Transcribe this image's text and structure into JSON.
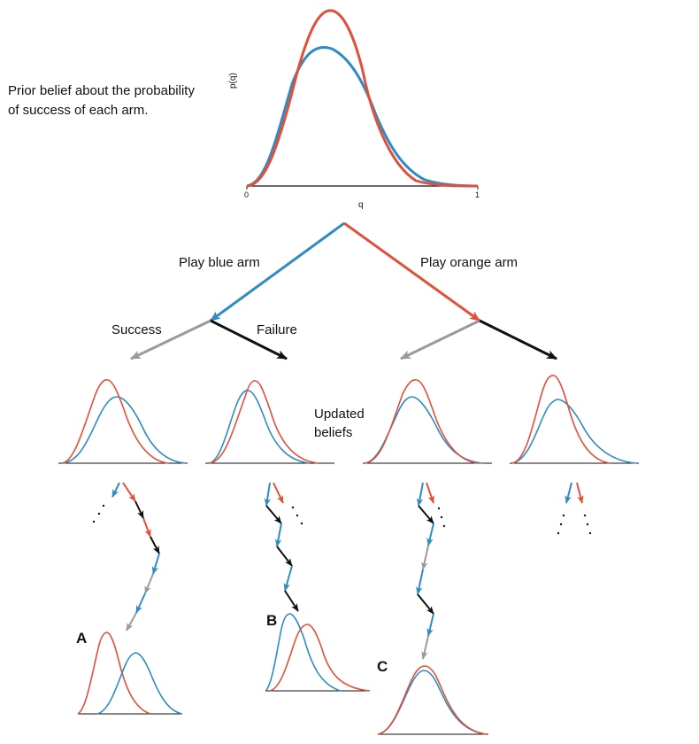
{
  "prior": {
    "description_line1": "Prior belief about the probability",
    "description_line2": "of success of each arm.",
    "ylabel": "p(q)",
    "xlabel": "q",
    "xtick_min": "0",
    "xtick_max": "1"
  },
  "actions": {
    "play_blue": "Play blue arm",
    "play_orange": "Play orange arm"
  },
  "outcomes": {
    "success": "Success",
    "failure": "Failure"
  },
  "updated": {
    "line1": "Updated",
    "line2": "beliefs"
  },
  "panels": {
    "a": "A",
    "b": "B",
    "c": "C"
  },
  "colors": {
    "blue_arm": "#2f8cc2",
    "orange_arm": "#e0503a",
    "success_outcome": "#9a9a9a",
    "failure_outcome": "#111111"
  }
}
